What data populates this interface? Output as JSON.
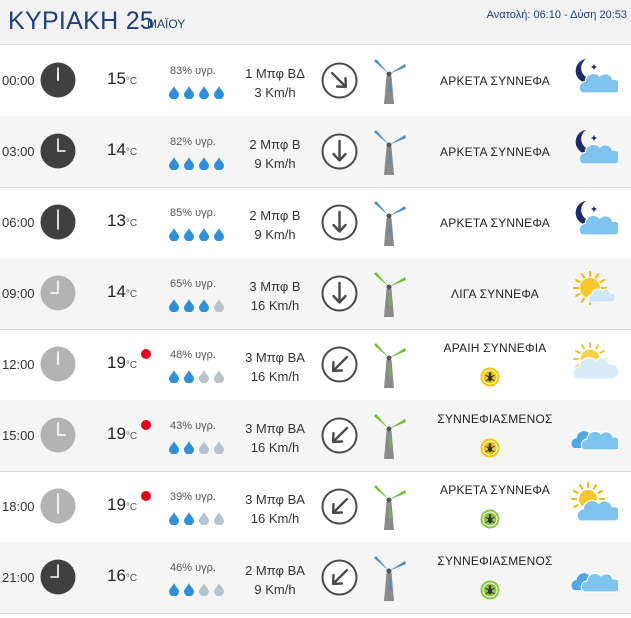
{
  "header": {
    "day_title": "ΚΥΡΙΑΚΗ 25",
    "month": "ΜΑΪΟΥ",
    "sun_info": "Ανατολή: 06:10 - Δύση 20:53"
  },
  "rows": [
    {
      "time": "00:00",
      "clock": "dark",
      "temp": "15",
      "unit": "°C",
      "alert": false,
      "humidity": "83% υγρ.",
      "drops_level": 4,
      "wind_force": "1 Μπφ ΒΔ",
      "wind_speed": "3 Km/h",
      "wind_dir": "ΒΔ",
      "turbine": "blue",
      "condition": "ΑΡΚΕΤΑ ΣΥΝΝΕΦΑ",
      "pollen": null,
      "weather_icon": "moon-cloud-icon"
    },
    {
      "time": "03:00",
      "clock": "dark",
      "temp": "14",
      "unit": "°C",
      "alert": false,
      "humidity": "82% υγρ.",
      "drops_level": 4,
      "wind_force": "2 Μπφ Β",
      "wind_speed": "9 Km/h",
      "wind_dir": "Β",
      "turbine": "blue",
      "condition": "ΑΡΚΕΤΑ ΣΥΝΝΕΦΑ",
      "pollen": null,
      "weather_icon": "moon-cloud-icon"
    },
    {
      "time": "06:00",
      "clock": "dark",
      "temp": "13",
      "unit": "°C",
      "alert": false,
      "humidity": "85% υγρ.",
      "drops_level": 4,
      "wind_force": "2 Μπφ Β",
      "wind_speed": "9 Km/h",
      "wind_dir": "Β",
      "turbine": "blue",
      "condition": "ΑΡΚΕΤΑ ΣΥΝΝΕΦΑ",
      "pollen": null,
      "weather_icon": "moon-cloud-icon"
    },
    {
      "time": "09:00",
      "clock": "light",
      "temp": "14",
      "unit": "°C",
      "alert": false,
      "humidity": "65% υγρ.",
      "drops_level": 3,
      "wind_force": "3 Μπφ Β",
      "wind_speed": "16 Km/h",
      "wind_dir": "Β",
      "turbine": "green",
      "condition": "ΛΙΓΑ ΣΥΝΝΕΦΑ",
      "pollen": null,
      "weather_icon": "sun-small-cloud-icon"
    },
    {
      "time": "12:00",
      "clock": "light",
      "temp": "19",
      "unit": "°C",
      "alert": true,
      "humidity": "48% υγρ.",
      "drops_level": 2,
      "wind_force": "3 Μπφ ΒΑ",
      "wind_speed": "16 Km/h",
      "wind_dir": "ΒΑ",
      "turbine": "green",
      "condition": "ΑΡΑΙΗ ΣΥΝΝΕΦΙΑ",
      "pollen": "yellow",
      "weather_icon": "haze-sun-icon"
    },
    {
      "time": "15:00",
      "clock": "light",
      "temp": "19",
      "unit": "°C",
      "alert": true,
      "humidity": "43% υγρ.",
      "drops_level": 2,
      "wind_force": "3 Μπφ ΒΑ",
      "wind_speed": "16 Km/h",
      "wind_dir": "ΒΑ",
      "turbine": "green",
      "condition": "ΣΥΝΝΕΦΙΑΣΜΕΝΟΣ",
      "pollen": "yellow",
      "weather_icon": "clouds-icon"
    },
    {
      "time": "18:00",
      "clock": "light",
      "temp": "19",
      "unit": "°C",
      "alert": true,
      "humidity": "39% υγρ.",
      "drops_level": 2,
      "wind_force": "3 Μπφ ΒΑ",
      "wind_speed": "16 Km/h",
      "wind_dir": "ΒΑ",
      "turbine": "green",
      "condition": "ΑΡΚΕΤΑ ΣΥΝΝΕΦΑ",
      "pollen": "green",
      "weather_icon": "sun-cloud-icon"
    },
    {
      "time": "21:00",
      "clock": "dark",
      "temp": "16",
      "unit": "°C",
      "alert": false,
      "humidity": "46% υγρ.",
      "drops_level": 2,
      "wind_force": "2 Μπφ ΒΑ",
      "wind_speed": "9 Km/h",
      "wind_dir": "ΒΑ",
      "turbine": "blue",
      "condition": "ΣΥΝΝΕΦΙΑΣΜΕΝΟΣ",
      "pollen": "green",
      "weather_icon": "clouds-icon"
    }
  ],
  "colors": {
    "title_blue": "#1e3f7d",
    "drop_blue": "#2f8fd8",
    "drop_grey": "#b8c3cc",
    "alert_red": "#e3001b",
    "turbine_blue": "#4a90c8",
    "turbine_green": "#6cbf2c",
    "pollen_yellow": "#f3c400",
    "pollen_green": "#8cc63f"
  }
}
